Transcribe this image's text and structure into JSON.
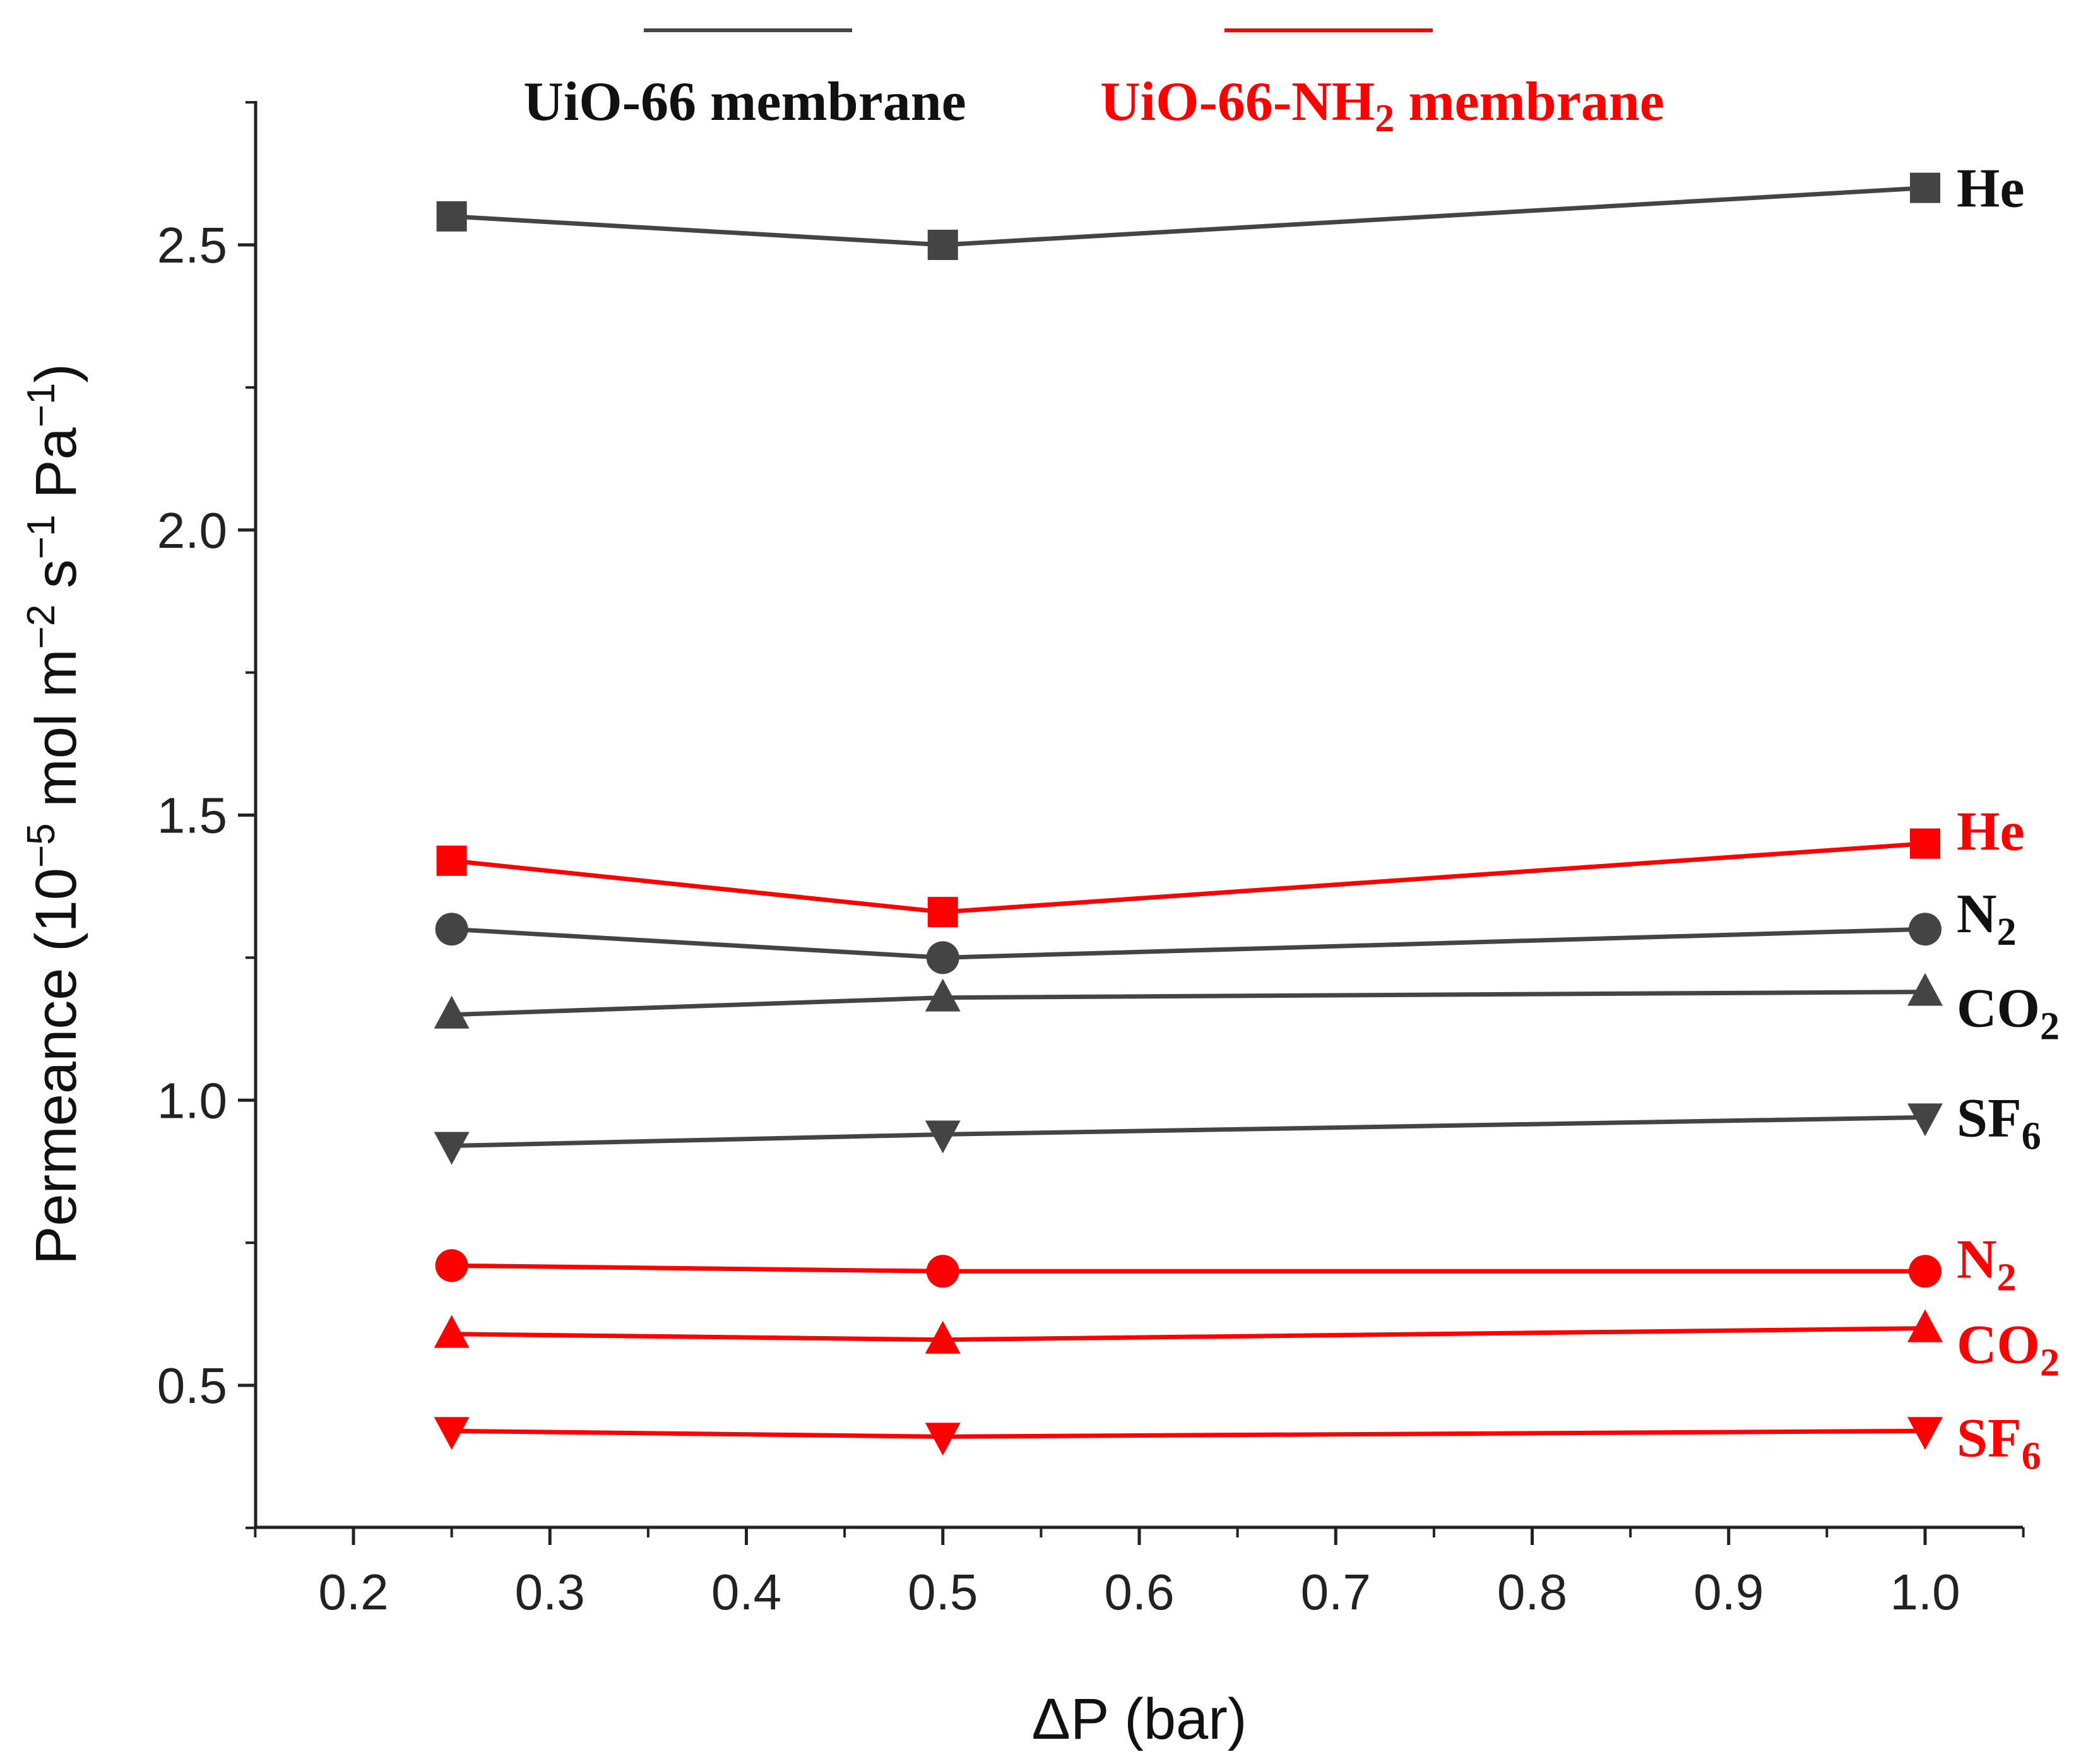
{
  "chart_data": {
    "type": "line",
    "xlabel": "ΔP (bar)",
    "ylabel_parts": [
      "Permeance (10",
      "−5",
      " mol m",
      "−2",
      " s",
      "−1",
      " Pa",
      "−1",
      ")"
    ],
    "xlim": [
      0.15,
      1.05
    ],
    "ylim": [
      0.25,
      2.77
    ],
    "x_ticks": [
      "0.2",
      "0.3",
      "0.4",
      "0.5",
      "0.6",
      "0.7",
      "0.8",
      "0.9",
      "1.0"
    ],
    "y_ticks": [
      "0.5",
      "1.0",
      "1.5",
      "2.0",
      "2.5"
    ],
    "x": [
      0.25,
      0.5,
      1.0
    ],
    "legend": [
      {
        "name": "UiO-66 membrane",
        "parts": [
          "UiO-66 membrane"
        ],
        "color": "#444444"
      },
      {
        "name": "UiO-66-NH2 membrane",
        "parts": [
          "UiO-66-NH",
          "2",
          " membrane"
        ],
        "color": "#ff0000"
      }
    ],
    "series": [
      {
        "membrane": "UiO-66",
        "gas": "He",
        "label_parts": [
          "He",
          ""
        ],
        "marker": "square",
        "color": "#444444",
        "values": [
          2.55,
          2.5,
          2.6
        ]
      },
      {
        "membrane": "UiO-66",
        "gas": "N2",
        "label_parts": [
          "N",
          "2"
        ],
        "marker": "circle",
        "color": "#444444",
        "values": [
          1.3,
          1.25,
          1.3
        ]
      },
      {
        "membrane": "UiO-66",
        "gas": "CO2",
        "label_parts": [
          "CO",
          "2"
        ],
        "marker": "triangle-up",
        "color": "#444444",
        "values": [
          1.15,
          1.18,
          1.19
        ]
      },
      {
        "membrane": "UiO-66",
        "gas": "SF6",
        "label_parts": [
          "SF",
          "6"
        ],
        "marker": "triangle-down",
        "color": "#444444",
        "values": [
          0.92,
          0.94,
          0.97
        ]
      },
      {
        "membrane": "UiO-66-NH2",
        "gas": "He",
        "label_parts": [
          "He",
          ""
        ],
        "marker": "square",
        "color": "#ff0000",
        "values": [
          1.42,
          1.33,
          1.45
        ]
      },
      {
        "membrane": "UiO-66-NH2",
        "gas": "N2",
        "label_parts": [
          "N",
          "2"
        ],
        "marker": "circle",
        "color": "#ff0000",
        "values": [
          0.71,
          0.7,
          0.7
        ]
      },
      {
        "membrane": "UiO-66-NH2",
        "gas": "CO2",
        "label_parts": [
          "CO",
          "2"
        ],
        "marker": "triangle-up",
        "color": "#ff0000",
        "values": [
          0.59,
          0.58,
          0.6
        ]
      },
      {
        "membrane": "UiO-66-NH2",
        "gas": "SF6",
        "label_parts": [
          "SF",
          "6"
        ],
        "marker": "triangle-down",
        "color": "#ff0000",
        "values": [
          0.42,
          0.41,
          0.42
        ]
      }
    ]
  }
}
